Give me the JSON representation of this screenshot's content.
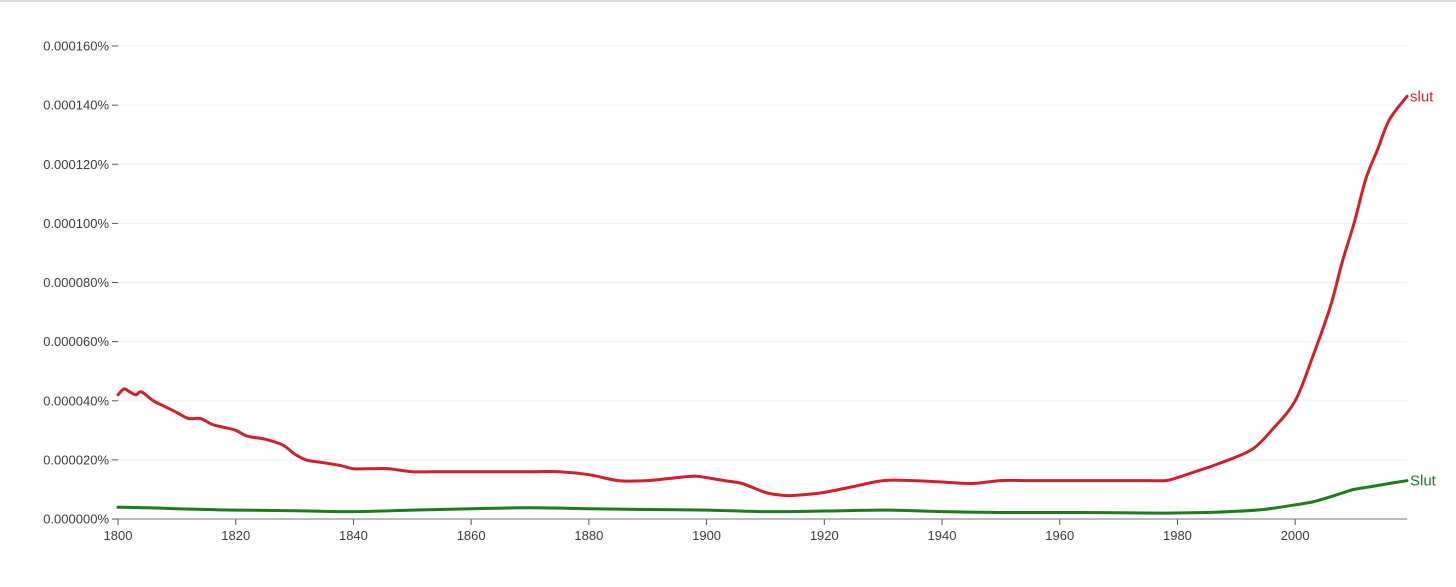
{
  "chart_data": {
    "type": "line",
    "title": "",
    "xlabel": "",
    "ylabel": "",
    "xlim": [
      1800,
      2019
    ],
    "ylim": [
      0,
      0.00016
    ],
    "xticks": [
      "1800",
      "1820",
      "1840",
      "1860",
      "1880",
      "1900",
      "1920",
      "1940",
      "1960",
      "1980",
      "2000"
    ],
    "yticks": [
      "0.000000%",
      "0.000020%",
      "0.000040%",
      "0.000060%",
      "0.000080%",
      "0.000100%",
      "0.000120%",
      "0.000140%",
      "0.000160%"
    ],
    "ytick_values": [
      0,
      2e-05,
      4e-05,
      6e-05,
      8e-05,
      0.0001,
      0.00012,
      0.00014,
      0.00016
    ],
    "grid": true,
    "legend": "inline labels at line ends",
    "series": [
      {
        "name": "slut",
        "color": "#d0202a",
        "x": [
          1800,
          1801,
          1802,
          1803,
          1804,
          1806,
          1808,
          1810,
          1812,
          1814,
          1816,
          1818,
          1820,
          1822,
          1825,
          1828,
          1830,
          1832,
          1835,
          1838,
          1840,
          1843,
          1846,
          1850,
          1855,
          1860,
          1865,
          1870,
          1875,
          1880,
          1885,
          1890,
          1895,
          1898,
          1900,
          1903,
          1906,
          1910,
          1913,
          1915,
          1918,
          1920,
          1925,
          1930,
          1935,
          1940,
          1945,
          1950,
          1955,
          1960,
          1965,
          1970,
          1975,
          1978,
          1980,
          1983,
          1986,
          1990,
          1993,
          1996,
          2000,
          2003,
          2006,
          2008,
          2010,
          2012,
          2014,
          2016,
          2019
        ],
        "values": [
          4.2e-05,
          4.4e-05,
          4.3e-05,
          4.2e-05,
          4.3e-05,
          4e-05,
          3.8e-05,
          3.6e-05,
          3.4e-05,
          3.4e-05,
          3.2e-05,
          3.1e-05,
          3e-05,
          2.8e-05,
          2.7e-05,
          2.5e-05,
          2.2e-05,
          2e-05,
          1.9e-05,
          1.8e-05,
          1.7e-05,
          1.7e-05,
          1.7e-05,
          1.6e-05,
          1.6e-05,
          1.6e-05,
          1.6e-05,
          1.6e-05,
          1.6e-05,
          1.5e-05,
          1.3e-05,
          1.3e-05,
          1.4e-05,
          1.45e-05,
          1.4e-05,
          1.3e-05,
          1.2e-05,
          9e-06,
          8e-06,
          8e-06,
          8.5e-06,
          9e-06,
          1.1e-05,
          1.3e-05,
          1.3e-05,
          1.25e-05,
          1.2e-05,
          1.3e-05,
          1.3e-05,
          1.3e-05,
          1.3e-05,
          1.3e-05,
          1.3e-05,
          1.3e-05,
          1.4e-05,
          1.6e-05,
          1.8e-05,
          2.1e-05,
          2.4e-05,
          3e-05,
          4e-05,
          5.5e-05,
          7.2e-05,
          8.7e-05,
          0.0001,
          0.000115,
          0.000125,
          0.000135,
          0.000143
        ]
      },
      {
        "name": "Slut",
        "color": "#1e7b1e",
        "x": [
          1800,
          1805,
          1810,
          1815,
          1820,
          1830,
          1840,
          1850,
          1860,
          1870,
          1880,
          1890,
          1900,
          1910,
          1920,
          1930,
          1940,
          1950,
          1960,
          1970,
          1978,
          1985,
          1990,
          1995,
          2000,
          2003,
          2006,
          2008,
          2010,
          2013,
          2016,
          2019
        ],
        "values": [
          4e-06,
          3.8e-06,
          3.5e-06,
          3.2e-06,
          3e-06,
          2.8e-06,
          2.5e-06,
          3e-06,
          3.5e-06,
          3.8e-06,
          3.5e-06,
          3.2e-06,
          3e-06,
          2.5e-06,
          2.7e-06,
          3e-06,
          2.5e-06,
          2.2e-06,
          2.2e-06,
          2.1e-06,
          2e-06,
          2.2e-06,
          2.6e-06,
          3.3e-06,
          4.8e-06,
          5.8e-06,
          7.5e-06,
          8.8e-06,
          1e-05,
          1.1e-05,
          1.2e-05,
          1.3e-05
        ]
      }
    ]
  }
}
